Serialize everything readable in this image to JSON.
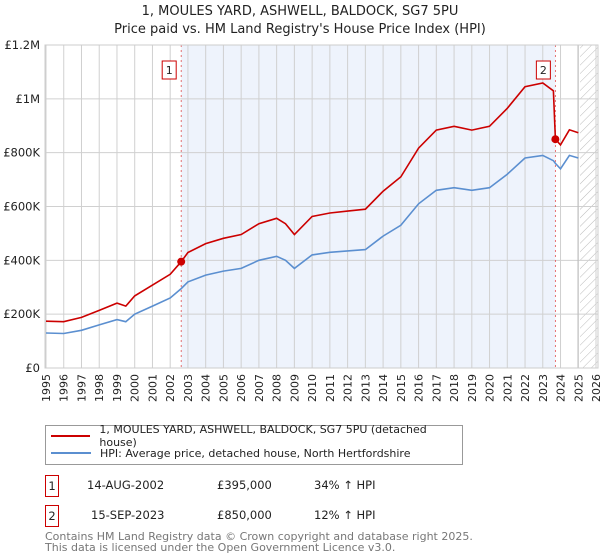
{
  "title": "1, MOULES YARD, ASHWELL, BALDOCK, SG7 5PU",
  "subtitle": "Price paid vs. HM Land Registry's House Price Index (HPI)",
  "colors": {
    "property": "#cc0000",
    "hpi": "#5b8fd0",
    "shade": "#eef3fc"
  },
  "chart_data": {
    "type": "line",
    "xlim": [
      1995,
      2026
    ],
    "ylim": [
      0,
      1200000
    ],
    "yticks": [
      0,
      200000,
      400000,
      600000,
      800000,
      1000000,
      1200000
    ],
    "ytick_labels": [
      "£0",
      "£200K",
      "£400K",
      "£600K",
      "£800K",
      "£1M",
      "£1.2M"
    ],
    "xtick_labels": [
      "1995",
      "1996",
      "1997",
      "1998",
      "1999",
      "2000",
      "2001",
      "2002",
      "2003",
      "2004",
      "2005",
      "2006",
      "2007",
      "2008",
      "2009",
      "2010",
      "2011",
      "2012",
      "2013",
      "2014",
      "2015",
      "2016",
      "2017",
      "2018",
      "2019",
      "2020",
      "2021",
      "2022",
      "2023",
      "2024",
      "2025",
      "2026"
    ],
    "grid": true,
    "series": [
      {
        "name": "1, MOULES YARD, ASHWELL, BALDOCK, SG7 5PU (detached house)",
        "x": [
          1995,
          1996,
          1997,
          1998,
          1999,
          1999.5,
          2000,
          2001,
          2002,
          2002.62,
          2003,
          2004,
          2005,
          2006,
          2007,
          2008,
          2008.5,
          2009,
          2010,
          2011,
          2012,
          2013,
          2014,
          2015,
          2016,
          2017,
          2018,
          2019,
          2020,
          2021,
          2022,
          2023,
          2023.6,
          2023.71,
          2024,
          2024.5,
          2025
        ],
        "y": [
          174000,
          172000,
          188000,
          214000,
          241000,
          230000,
          268000,
          308000,
          348000,
          395000,
          429000,
          462000,
          482000,
          496000,
          536000,
          556000,
          536000,
          496000,
          563000,
          576000,
          583000,
          590000,
          657000,
          710000,
          817000,
          884000,
          898000,
          884000,
          898000,
          965000,
          1045000,
          1059000,
          1030000,
          850000,
          829000,
          885000,
          874000
        ]
      },
      {
        "name": "HPI: Average price, detached house, North Hertfordshire",
        "x": [
          1995,
          1996,
          1997,
          1998,
          1999,
          1999.5,
          2000,
          2001,
          2002,
          2002.62,
          2003,
          2004,
          2005,
          2006,
          2007,
          2008,
          2008.5,
          2009,
          2010,
          2011,
          2012,
          2013,
          2014,
          2015,
          2016,
          2017,
          2018,
          2019,
          2020,
          2021,
          2022,
          2023,
          2023.6,
          2023.71,
          2024,
          2024.5,
          2025
        ],
        "y": [
          130000,
          128000,
          140000,
          160000,
          180000,
          172000,
          200000,
          230000,
          260000,
          295000,
          320000,
          345000,
          360000,
          370000,
          400000,
          415000,
          400000,
          370000,
          420000,
          430000,
          435000,
          440000,
          490000,
          530000,
          610000,
          660000,
          670000,
          660000,
          670000,
          720000,
          780000,
          790000,
          770000,
          760000,
          740000,
          790000,
          780000
        ]
      }
    ],
    "annotations": [
      {
        "label": "1",
        "x": 2002.62,
        "y": 395000
      },
      {
        "label": "2",
        "x": 2023.71,
        "y": 850000
      }
    ],
    "forecast_hatch_from": 2025.1
  },
  "legend": {
    "property": "1, MOULES YARD, ASHWELL, BALDOCK, SG7 5PU (detached house)",
    "hpi": "HPI: Average price, detached house, North Hertfordshire"
  },
  "transactions": [
    {
      "num": "1",
      "date": "14-AUG-2002",
      "price": "£395,000",
      "hpi": "34% ↑ HPI"
    },
    {
      "num": "2",
      "date": "15-SEP-2023",
      "price": "£850,000",
      "hpi": "12% ↑ HPI"
    }
  ],
  "footer": {
    "line1": "Contains HM Land Registry data © Crown copyright and database right 2025.",
    "line2": "This data is licensed under the Open Government Licence v3.0."
  }
}
